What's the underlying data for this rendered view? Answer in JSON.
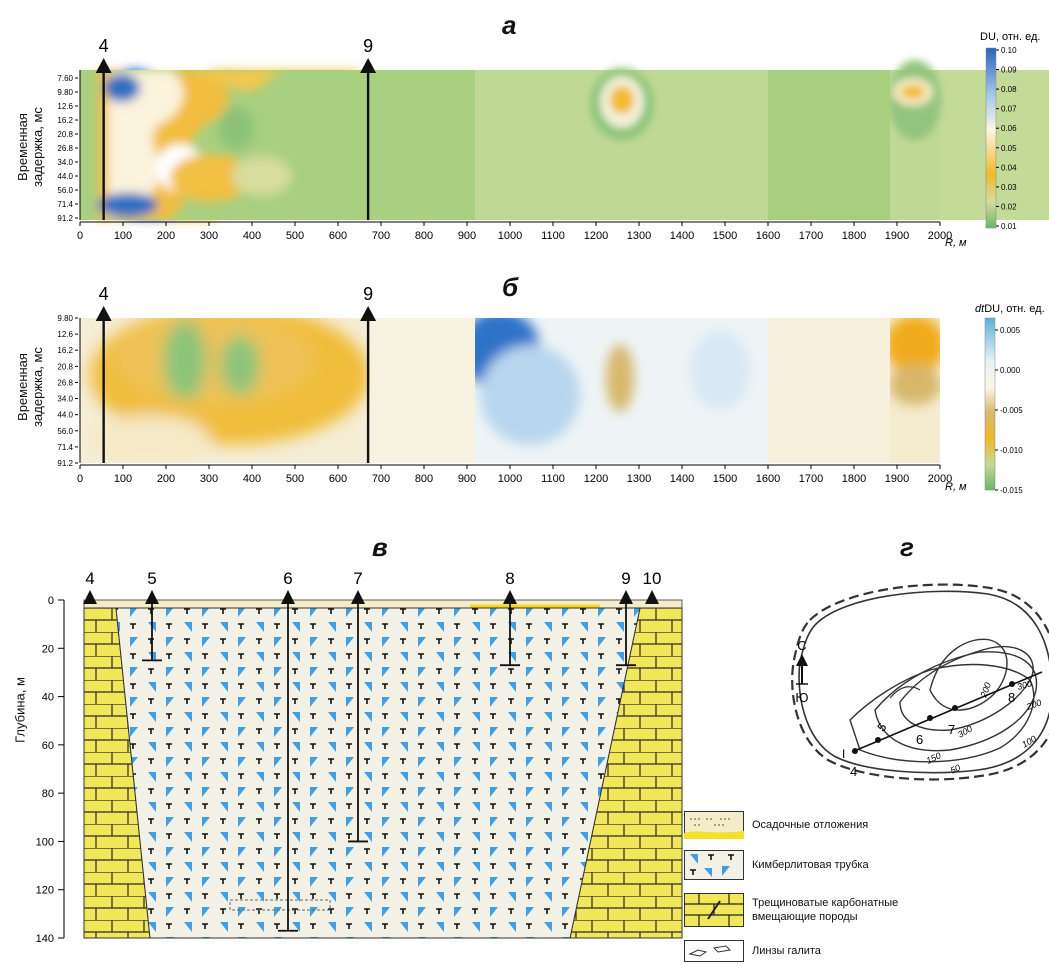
{
  "panel_a": {
    "letter": "а",
    "y_axis_label_line1": "Временная",
    "y_axis_label_line2": "задержка, мс",
    "y_ticks": [
      "7.60",
      "9.80",
      "12.6",
      "16.2",
      "20.8",
      "26.8",
      "34.0",
      "44.0",
      "56.0",
      "71.4",
      "91.2"
    ],
    "x_ticks": [
      "0",
      "100",
      "200",
      "300",
      "400",
      "500",
      "600",
      "700",
      "800",
      "900",
      "1000",
      "1100",
      "1200",
      "1300",
      "1400",
      "1500",
      "1600",
      "1700",
      "1800",
      "1900",
      "2000"
    ],
    "x_unit": "R, м",
    "wells": [
      {
        "label": "4",
        "r": 55
      },
      {
        "label": "9",
        "r": 670
      }
    ],
    "colorbar_title": "DU, отн. ед.",
    "colorbar_ticks": [
      "0.10",
      "0.09",
      "0.08",
      "0.07",
      "0.06",
      "0.05",
      "0.04",
      "0.03",
      "0.02",
      "0.01"
    ]
  },
  "panel_b": {
    "letter": "б",
    "y_axis_label_line1": "Временная",
    "y_axis_label_line2": "задержка, мс",
    "y_ticks": [
      "9.80",
      "12.6",
      "16.2",
      "20.8",
      "26.8",
      "34.0",
      "44.0",
      "56.0",
      "71.4",
      "91.2"
    ],
    "x_ticks": [
      "0",
      "100",
      "200",
      "300",
      "400",
      "500",
      "600",
      "700",
      "800",
      "900",
      "1000",
      "1100",
      "1200",
      "1300",
      "1400",
      "1500",
      "1600",
      "1700",
      "1800",
      "1900",
      "2000"
    ],
    "x_unit": "R, м",
    "wells": [
      {
        "label": "4",
        "r": 55
      },
      {
        "label": "9",
        "r": 670
      }
    ],
    "colorbar_title_italic": "dt",
    "colorbar_title": "DU, отн. ед.",
    "colorbar_ticks": [
      "0.005",
      "0.000",
      "-0.005",
      "-0.010",
      "-0.015"
    ]
  },
  "panel_v": {
    "letter": "в",
    "y_axis_label": "Глубина, м",
    "y_ticks": [
      "0",
      "20",
      "40",
      "60",
      "80",
      "100",
      "120",
      "140"
    ],
    "wells": [
      {
        "label": "4",
        "depth": 140
      },
      {
        "label": "5",
        "depth": 25
      },
      {
        "label": "6",
        "depth": 137
      },
      {
        "label": "7",
        "depth": 100
      },
      {
        "label": "8",
        "depth": 27
      },
      {
        "label": "9",
        "depth": 27
      },
      {
        "label": "10",
        "depth": 140
      }
    ],
    "legend": [
      {
        "label": "Осадочные отложения"
      },
      {
        "label": "Кимберлитовая трубка"
      },
      {
        "label": "Трещиноватые карбонатные",
        "label2": "вмещающие породы"
      },
      {
        "label": "Линзы галита"
      }
    ]
  },
  "panel_g": {
    "letter": "г",
    "north_label": "С",
    "south_label": "Ю",
    "profile_label": "I",
    "well_labels": [
      "4",
      "5",
      "6",
      "7",
      "8"
    ],
    "contour_labels": [
      "300",
      "200",
      "200",
      "300",
      "100",
      "150",
      "50"
    ]
  },
  "colors": {
    "green": "#93c47d",
    "light_green": "#bcd78f",
    "yellow": "#f0b92a",
    "cream": "#fbf6e6",
    "blue": "#2f73c8",
    "limestone": "#f2e65b",
    "kimberlite_fill": "#f3f1e6",
    "kimberlite_triangle": "#3f9fe6"
  }
}
